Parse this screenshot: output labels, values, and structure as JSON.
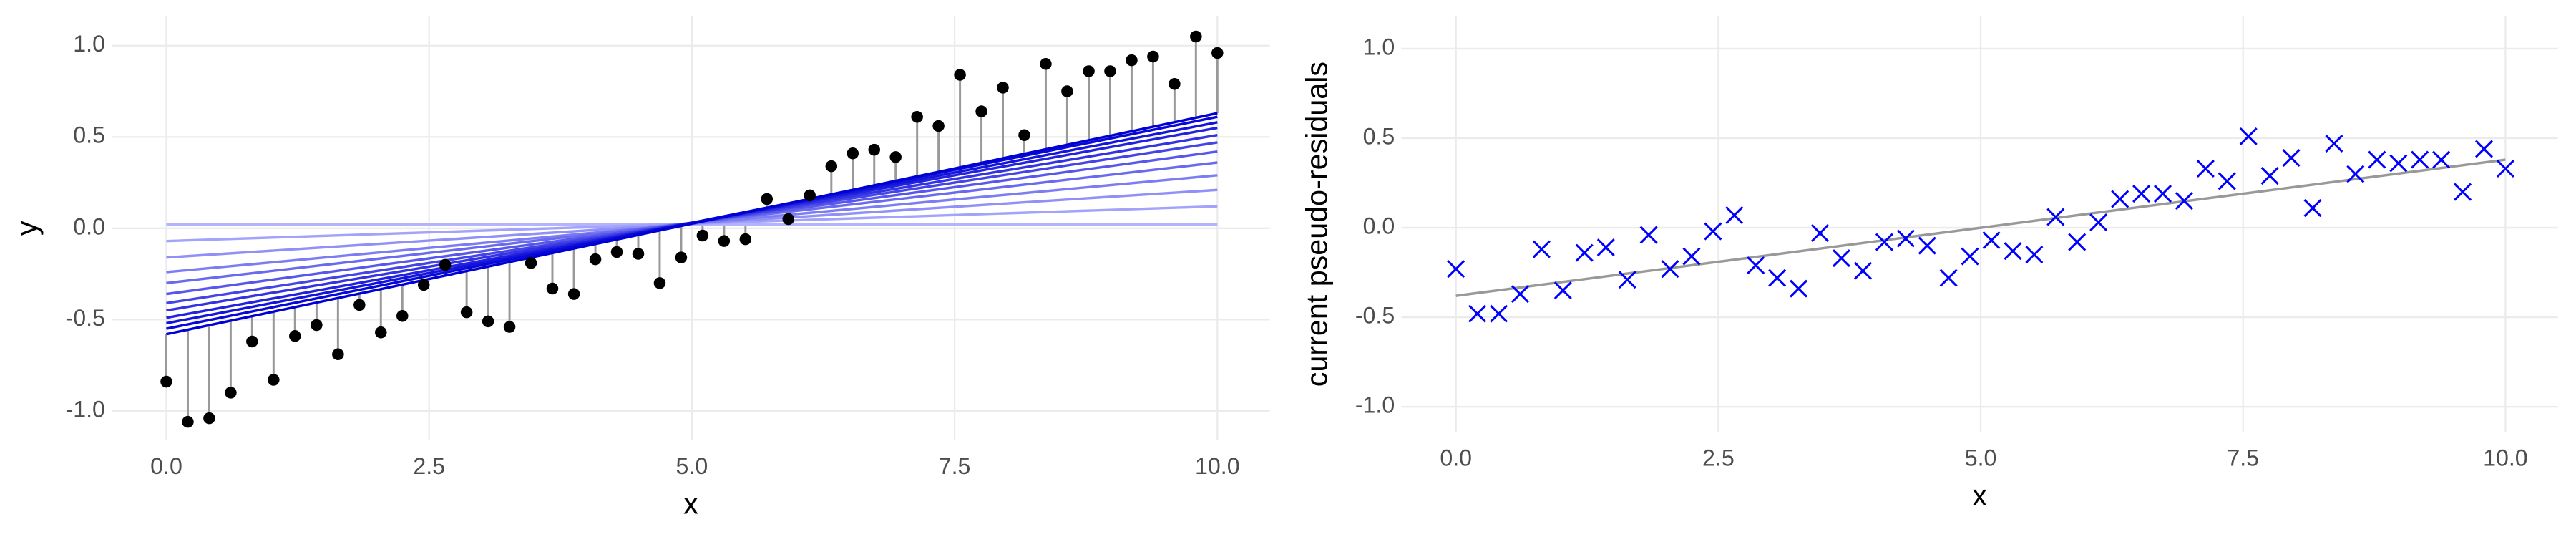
{
  "chart_data": [
    {
      "type": "scatter",
      "xlabel": "x",
      "ylabel": "y",
      "color": "#000000",
      "stem_color": "#999999",
      "x": [
        0,
        0.204,
        0.408,
        0.612,
        0.816,
        1.02,
        1.224,
        1.429,
        1.633,
        1.837,
        2.041,
        2.245,
        2.449,
        2.653,
        2.857,
        3.061,
        3.265,
        3.469,
        3.673,
        3.878,
        4.082,
        4.286,
        4.49,
        4.694,
        4.898,
        5.102,
        5.306,
        5.51,
        5.714,
        5.918,
        6.122,
        6.327,
        6.531,
        6.735,
        6.939,
        7.143,
        7.347,
        7.551,
        7.755,
        7.959,
        8.163,
        8.367,
        8.571,
        8.776,
        8.98,
        9.184,
        9.388,
        9.592,
        9.796,
        10
      ],
      "values": [
        -0.84,
        -1.06,
        -1.04,
        -0.9,
        -0.62,
        -0.83,
        -0.59,
        -0.53,
        -0.69,
        -0.42,
        -0.57,
        -0.48,
        -0.31,
        -0.2,
        -0.46,
        -0.51,
        -0.54,
        -0.19,
        -0.33,
        -0.36,
        -0.17,
        -0.13,
        -0.14,
        -0.3,
        -0.16,
        -0.04,
        -0.07,
        -0.06,
        0.16,
        0.05,
        0.18,
        0.34,
        0.41,
        0.43,
        0.39,
        0.61,
        0.56,
        0.84,
        0.64,
        0.77,
        0.51,
        0.9,
        0.75,
        0.86,
        0.86,
        0.92,
        0.94,
        0.79,
        1.05,
        0.96
      ],
      "line_x": [
        0,
        10
      ],
      "fit_lines": [
        {
          "color": "#b3b3ff",
          "values": [
            0.02,
            0.02
          ]
        },
        {
          "color": "#a3a3fb",
          "values": [
            -0.07,
            0.12
          ]
        },
        {
          "color": "#9090f7",
          "values": [
            -0.16,
            0.21
          ]
        },
        {
          "color": "#7d7df3",
          "values": [
            -0.24,
            0.29
          ]
        },
        {
          "color": "#6a6aef",
          "values": [
            -0.3,
            0.36
          ]
        },
        {
          "color": "#5757eb",
          "values": [
            -0.36,
            0.42
          ]
        },
        {
          "color": "#4444e7",
          "values": [
            -0.41,
            0.47
          ]
        },
        {
          "color": "#3333e3",
          "values": [
            -0.45,
            0.51
          ]
        },
        {
          "color": "#2222df",
          "values": [
            -0.49,
            0.55
          ]
        },
        {
          "color": "#1414db",
          "values": [
            -0.52,
            0.58
          ]
        },
        {
          "color": "#0808d8",
          "values": [
            -0.55,
            0.61
          ]
        },
        {
          "color": "#0000d4",
          "values": [
            -0.58,
            0.63
          ]
        }
      ],
      "xlim": [
        -0.52,
        10.5
      ],
      "ylim": [
        -1.16,
        1.16
      ],
      "xticks": [
        {
          "value": 0,
          "label": "0.0"
        },
        2.5,
        {
          "value": 5,
          "label": "5.0"
        },
        7.5,
        {
          "value": 10,
          "label": "10.0"
        }
      ],
      "yticks": [
        {
          "value": -1,
          "label": "-1.0"
        },
        -0.5,
        {
          "value": 0,
          "label": "0.0"
        },
        0.5,
        {
          "value": 1,
          "label": "1.0"
        }
      ],
      "grid": true
    },
    {
      "type": "scatter",
      "marker": "x",
      "xlabel": "x",
      "ylabel": "current pseudo-residuals",
      "color": "#0000ff",
      "fit_color": "#999999",
      "x": [
        0,
        0.204,
        0.408,
        0.612,
        0.816,
        1.02,
        1.224,
        1.429,
        1.633,
        1.837,
        2.041,
        2.245,
        2.449,
        2.653,
        2.857,
        3.061,
        3.265,
        3.469,
        3.673,
        3.878,
        4.082,
        4.286,
        4.49,
        4.694,
        4.898,
        5.102,
        5.306,
        5.51,
        5.714,
        5.918,
        6.122,
        6.327,
        6.531,
        6.735,
        6.939,
        7.143,
        7.347,
        7.551,
        7.755,
        7.959,
        8.163,
        8.367,
        8.571,
        8.776,
        8.98,
        9.184,
        9.388,
        9.592,
        9.796,
        10
      ],
      "values": [
        -0.23,
        -0.48,
        -0.48,
        -0.37,
        -0.12,
        -0.35,
        -0.14,
        -0.11,
        -0.29,
        -0.04,
        -0.23,
        -0.16,
        -0.02,
        0.07,
        -0.21,
        -0.28,
        -0.34,
        -0.03,
        -0.17,
        -0.24,
        -0.08,
        -0.06,
        -0.1,
        -0.28,
        -0.16,
        -0.07,
        -0.13,
        -0.15,
        0.06,
        -0.08,
        0.03,
        0.16,
        0.19,
        0.19,
        0.15,
        0.33,
        0.26,
        0.51,
        0.29,
        0.39,
        0.11,
        0.47,
        0.3,
        0.38,
        0.36,
        0.38,
        0.38,
        0.2,
        0.44,
        0.33
      ],
      "line_x": [
        0,
        10
      ],
      "fit_values": [
        -0.38,
        0.38
      ],
      "xlim": [
        -0.52,
        10.5
      ],
      "ylim": [
        -1.14,
        1.18
      ],
      "xticks": [
        {
          "value": 0,
          "label": "0.0"
        },
        2.5,
        {
          "value": 5,
          "label": "5.0"
        },
        7.5,
        {
          "value": 10,
          "label": "10.0"
        }
      ],
      "yticks": [
        {
          "value": -1,
          "label": "-1.0"
        },
        -0.5,
        {
          "value": 0,
          "label": "0.0"
        },
        0.5,
        {
          "value": 1,
          "label": "1.0"
        }
      ],
      "grid": true
    }
  ]
}
